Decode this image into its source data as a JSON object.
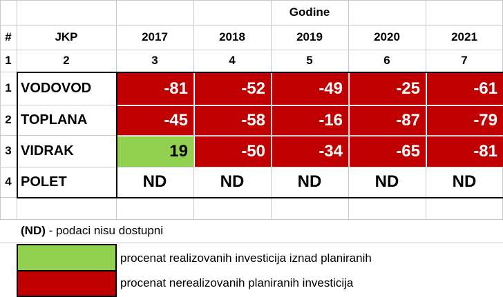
{
  "table": {
    "group_header": "Godine",
    "col_num_header": "#",
    "jkp_header": "JKP",
    "years": [
      "2017",
      "2018",
      "2019",
      "2020",
      "2021"
    ],
    "index_row": [
      "1",
      "2",
      "3",
      "4",
      "5",
      "6",
      "7"
    ],
    "rows": [
      {
        "num": "1",
        "name": "VODOVOD",
        "values": [
          "-81",
          "-52",
          "-49",
          "-25",
          "-61"
        ],
        "status": [
          "red",
          "red",
          "red",
          "red",
          "red"
        ]
      },
      {
        "num": "2",
        "name": "TOPLANA",
        "values": [
          "-45",
          "-58",
          "-16",
          "-87",
          "-79"
        ],
        "status": [
          "red",
          "red",
          "red",
          "red",
          "red"
        ]
      },
      {
        "num": "3",
        "name": "VIDRAK",
        "values": [
          "19",
          "-50",
          "-34",
          "-65",
          "-81"
        ],
        "status": [
          "green",
          "red",
          "red",
          "red",
          "red"
        ]
      },
      {
        "num": "4",
        "name": "POLET",
        "values": [
          "ND",
          "ND",
          "ND",
          "ND",
          "ND"
        ],
        "status": [
          "none",
          "none",
          "none",
          "none",
          "none"
        ]
      }
    ]
  },
  "legend": {
    "nd_abbr": "(ND)",
    "nd_note": " - podaci nisu dostupni",
    "green_label": "procenat realizovanih investicija iznad planiranih",
    "red_label": "procenat nerealizovanih planiranih investicija"
  },
  "colors": {
    "red": "#c00000",
    "green": "#92d050"
  }
}
